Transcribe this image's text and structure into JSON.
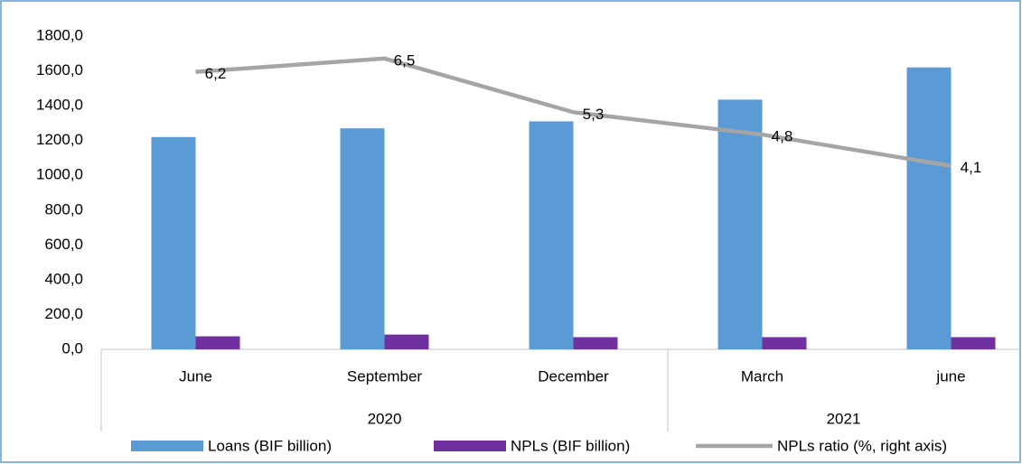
{
  "chart_data": {
    "type": "bar",
    "categories": [
      "June",
      "September",
      "December",
      "March",
      "june"
    ],
    "groups": [
      {
        "label": "2020",
        "size": 3
      },
      {
        "label": "2021",
        "size": 2
      }
    ],
    "series": [
      {
        "name": "Loans (BIF billion)",
        "color": "#5b9bd5",
        "values": [
          1220,
          1270,
          1310,
          1435,
          1620
        ]
      },
      {
        "name": "NPLs (BIF billion)",
        "color": "#7030a0",
        "values": [
          75,
          85,
          70,
          70,
          70
        ]
      },
      {
        "name": "NPLs ratio (%, right axis)",
        "type": "line",
        "axis": "y2",
        "color": "#a5a5a5",
        "values": [
          6.2,
          6.5,
          5.3,
          4.8,
          4.1
        ],
        "value_labels": [
          "6,2",
          "6,5",
          "5,3",
          "4,8",
          "4,1"
        ]
      }
    ],
    "ylim": [
      0,
      1800
    ],
    "yticks": [
      {
        "value": 0,
        "label": "0,0"
      },
      {
        "value": 200,
        "label": "200,0"
      },
      {
        "value": 400,
        "label": "400,0"
      },
      {
        "value": 600,
        "label": "600,0"
      },
      {
        "value": 800,
        "label": "800,0"
      },
      {
        "value": 1000,
        "label": "1000,0"
      },
      {
        "value": 1200,
        "label": "1200,0"
      },
      {
        "value": 1400,
        "label": "1400,0"
      },
      {
        "value": 1600,
        "label": "1600,0"
      },
      {
        "value": 1800,
        "label": "1800,0"
      }
    ],
    "y2lim": [
      0,
      7
    ],
    "legend": "bottom"
  }
}
